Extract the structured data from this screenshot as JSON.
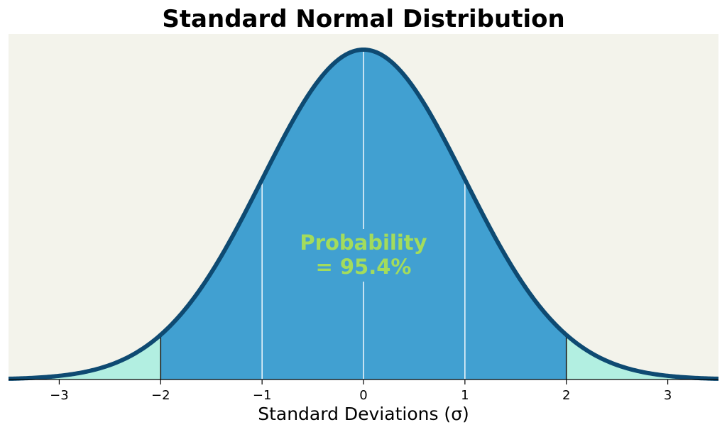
{
  "chart_data": {
    "type": "area",
    "title": "Standard Normal Distribution",
    "xlabel": "Standard Deviations (σ)",
    "ylabel": "",
    "xlim": [
      -3.5,
      3.5
    ],
    "ylim": [
      0,
      0.4
    ],
    "grid": false,
    "distribution": {
      "name": "normal",
      "mean": 0,
      "sd": 1
    },
    "x_ticks": [
      -3,
      -2,
      -1,
      0,
      1,
      2,
      3
    ],
    "x_tick_labels": [
      "−3",
      "−2",
      "−1",
      "0",
      "1",
      "2",
      "3"
    ],
    "shaded_region": {
      "from": -2,
      "to": 2
    },
    "sd_lines": [
      -2,
      -1,
      0,
      1,
      2
    ],
    "annotation": {
      "line1": "Probability",
      "line2": "= 95.4%",
      "value_percent": 95.4,
      "x": 0
    },
    "colors": {
      "background": "#f3f3eb",
      "central_fill": "#41a0d1",
      "tail_fill": "#b2efe1",
      "curve": "#0e4a72",
      "sd_line_inside": "#ffffff",
      "sd_line_boundary": "#1a1a1a",
      "annotation": "#a3dc5c"
    }
  }
}
